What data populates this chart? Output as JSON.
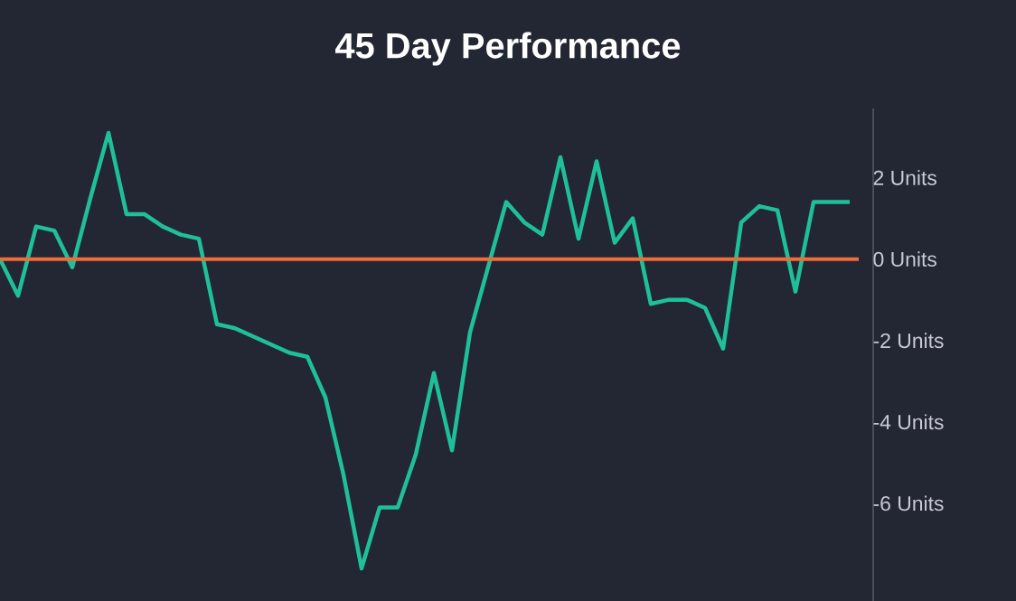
{
  "chart_data": {
    "type": "line",
    "title": "45 Day Performance",
    "categories": [
      null,
      null,
      null,
      null,
      null,
      null,
      null,
      null,
      null,
      null,
      null,
      null,
      null,
      null,
      null,
      null,
      null,
      null,
      null,
      null,
      null,
      null,
      null,
      null,
      null,
      null,
      null,
      null,
      null,
      null,
      null,
      null,
      null,
      null,
      null,
      null,
      null,
      null,
      null,
      null,
      null,
      null,
      null,
      null,
      null,
      null,
      null,
      null
    ],
    "series": [
      {
        "color": "#1fbf9a",
        "values": [
          0.0,
          -0.9,
          0.8,
          0.7,
          -0.2,
          1.5,
          3.1,
          1.1,
          1.1,
          0.8,
          0.6,
          0.5,
          -1.6,
          -1.7,
          -1.9,
          -2.1,
          -2.3,
          -2.4,
          -3.4,
          -5.3,
          -7.6,
          -6.1,
          -6.1,
          -4.8,
          -2.8,
          -4.7,
          -1.8,
          -0.2,
          1.4,
          0.9,
          0.6,
          2.5,
          0.5,
          2.4,
          0.4,
          1.0,
          -1.1,
          -1.0,
          -1.0,
          -1.2,
          -2.2,
          0.9,
          1.3,
          1.2,
          -0.8,
          1.4,
          1.4,
          1.4
        ]
      }
    ],
    "ref_lines": [
      {
        "axis": "y",
        "value": 0,
        "color": "#f26b3a"
      }
    ],
    "ylim": [
      -8.4,
      3.7
    ],
    "yticks": [
      {
        "value": 2,
        "label": "2 Units"
      },
      {
        "value": 0,
        "label": "0 Units"
      },
      {
        "value": -2,
        "label": "-2 Units"
      },
      {
        "value": -4,
        "label": "-4 Units"
      },
      {
        "value": -6,
        "label": "-6 Units"
      }
    ],
    "legend": false,
    "marker": "none",
    "line_style": "solid",
    "grid": false
  }
}
